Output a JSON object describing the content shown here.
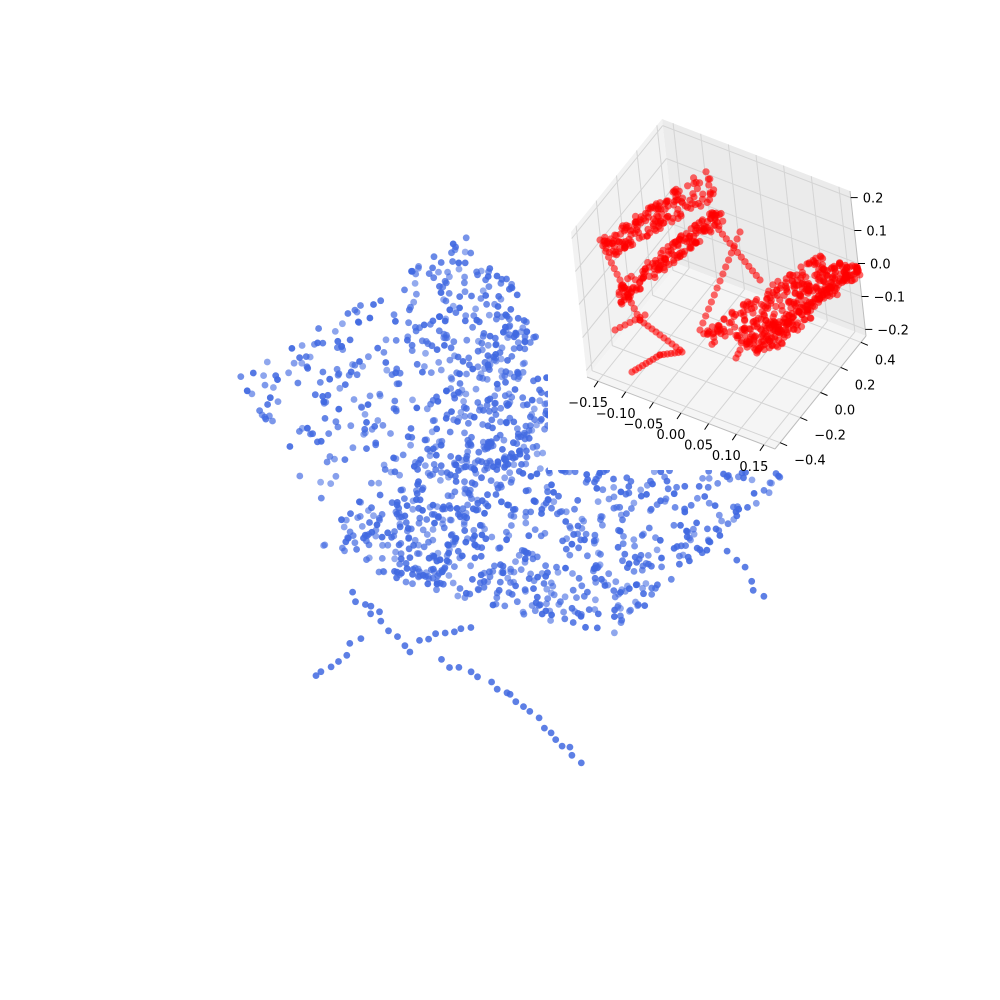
{
  "chart_data": [
    {
      "type": "scatter",
      "dimensions": 3,
      "description_shape": "bench-like point cloud",
      "color": "#4169e1",
      "axes_visible": false,
      "point_count_estimate": 2048
    },
    {
      "type": "scatter",
      "dimensions": 3,
      "color": "#ff0000",
      "axes_visible": true,
      "grid": true,
      "x": {
        "range": [
          -0.17,
          0.17
        ],
        "ticks": [
          -0.15,
          -0.1,
          -0.05,
          0.0,
          0.05,
          0.1,
          0.15
        ],
        "tick_labels": [
          "−0.15",
          "−0.10",
          "−0.05",
          "0.00",
          "0.05",
          "0.10",
          "0.15"
        ]
      },
      "y": {
        "range": [
          -0.45,
          0.45
        ],
        "ticks": [
          -0.4,
          -0.2,
          0.0,
          0.2,
          0.4
        ],
        "tick_labels": [
          "−0.4",
          "−0.2",
          "0.0",
          "0.2",
          "0.4"
        ]
      },
      "z": {
        "range": [
          -0.22,
          0.22
        ],
        "ticks": [
          -0.2,
          -0.1,
          0.0,
          0.1,
          0.2
        ],
        "tick_labels": [
          "−0.2",
          "−0.1",
          "0.0",
          "0.1",
          "0.2"
        ]
      }
    }
  ]
}
